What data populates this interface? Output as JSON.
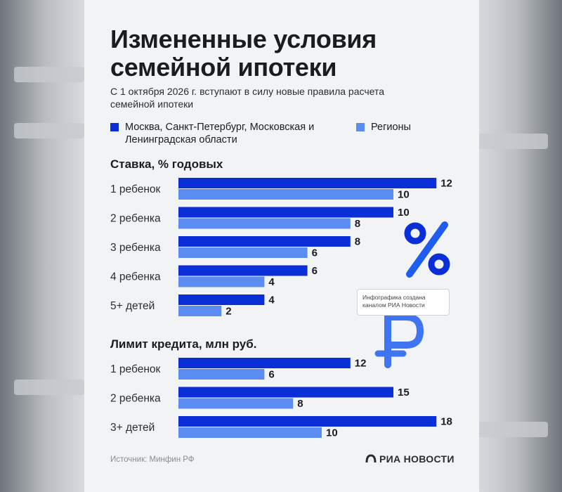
{
  "title": "Измененные условия семейной ипотеки",
  "subtitle": "С 1 октября 2026 г. вступают в силу новые правила расчета семейной ипотеки",
  "colors": {
    "capitals": "#0a2fd6",
    "regions": "#5a8cf2",
    "text": "#1b1c1f"
  },
  "legend": [
    {
      "label": "Москва, Санкт-Петербург, Московская и Ленинградская области",
      "color": "#0a2fd6"
    },
    {
      "label": "Регионы",
      "color": "#5a8cf2"
    }
  ],
  "chart_data": [
    {
      "type": "bar",
      "orientation": "horizontal",
      "title": "Ставка, % годовых",
      "categories": [
        "1 ребенок",
        "2 ребенка",
        "3 ребенка",
        "4 ребенка",
        "5+ детей"
      ],
      "series": [
        {
          "name": "Москва, Санкт-Петербург, Московская и Ленинградская области",
          "values": [
            12,
            10,
            8,
            6,
            4
          ]
        },
        {
          "name": "Регионы",
          "values": [
            10,
            8,
            6,
            4,
            2
          ]
        }
      ]
    },
    {
      "type": "bar",
      "orientation": "horizontal",
      "title": "Лимит кредита, млн руб.",
      "categories": [
        "1 ребенок",
        "2 ребенка",
        "3+ детей"
      ],
      "series": [
        {
          "name": "Москва, Санкт-Петербург, Московская и Ленинградская области",
          "values": [
            12,
            15,
            18
          ]
        },
        {
          "name": "Регионы",
          "values": [
            6,
            8,
            10
          ]
        }
      ]
    }
  ],
  "watermark": "Инфографика создана каналом РИА Новости",
  "source": "Источник: Минфин РФ",
  "brand": "РИА НОВОСТИ",
  "icons": [
    "percent-icon",
    "ruble-icon",
    "ria-logo-icon"
  ]
}
